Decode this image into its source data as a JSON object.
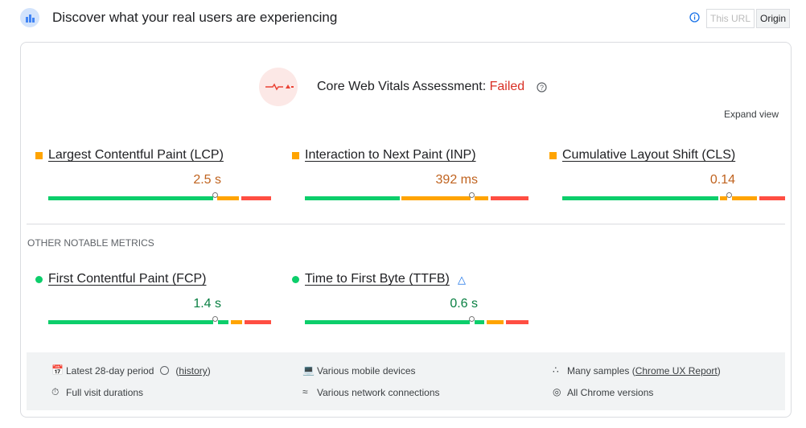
{
  "header": {
    "title": "Discover what your real users are experiencing",
    "buttons": [
      "This URL",
      "Origin"
    ]
  },
  "assessment": {
    "label": "Core Web Vitals Assessment:",
    "status": "Failed",
    "expand": "Expand view"
  },
  "core_metrics": [
    {
      "name": "Largest Contentful Paint (LCP)",
      "value": "2.5 s"
    },
    {
      "name": "Interaction to Next Paint (INP)",
      "value": "392 ms"
    },
    {
      "name": "Cumulative Layout Shift (CLS)",
      "value": "0.14"
    }
  ],
  "other_heading": "OTHER NOTABLE METRICS",
  "other_metrics": [
    {
      "name": "First Contentful Paint (FCP)",
      "value": "1.4 s"
    },
    {
      "name": "Time to First Byte (TTFB)",
      "value": "0.6 s"
    }
  ],
  "footer": [
    {
      "text": "Latest 28-day period",
      "open": "(",
      "link": "history",
      "close": ")"
    },
    {
      "text": "Various mobile devices"
    },
    {
      "text": "Many samples",
      "open": "(",
      "link": "Chrome UX Report",
      "close": ")"
    },
    {
      "text": "Full visit durations"
    },
    {
      "text": "Various network connections"
    },
    {
      "text": "All Chrome versions"
    }
  ]
}
